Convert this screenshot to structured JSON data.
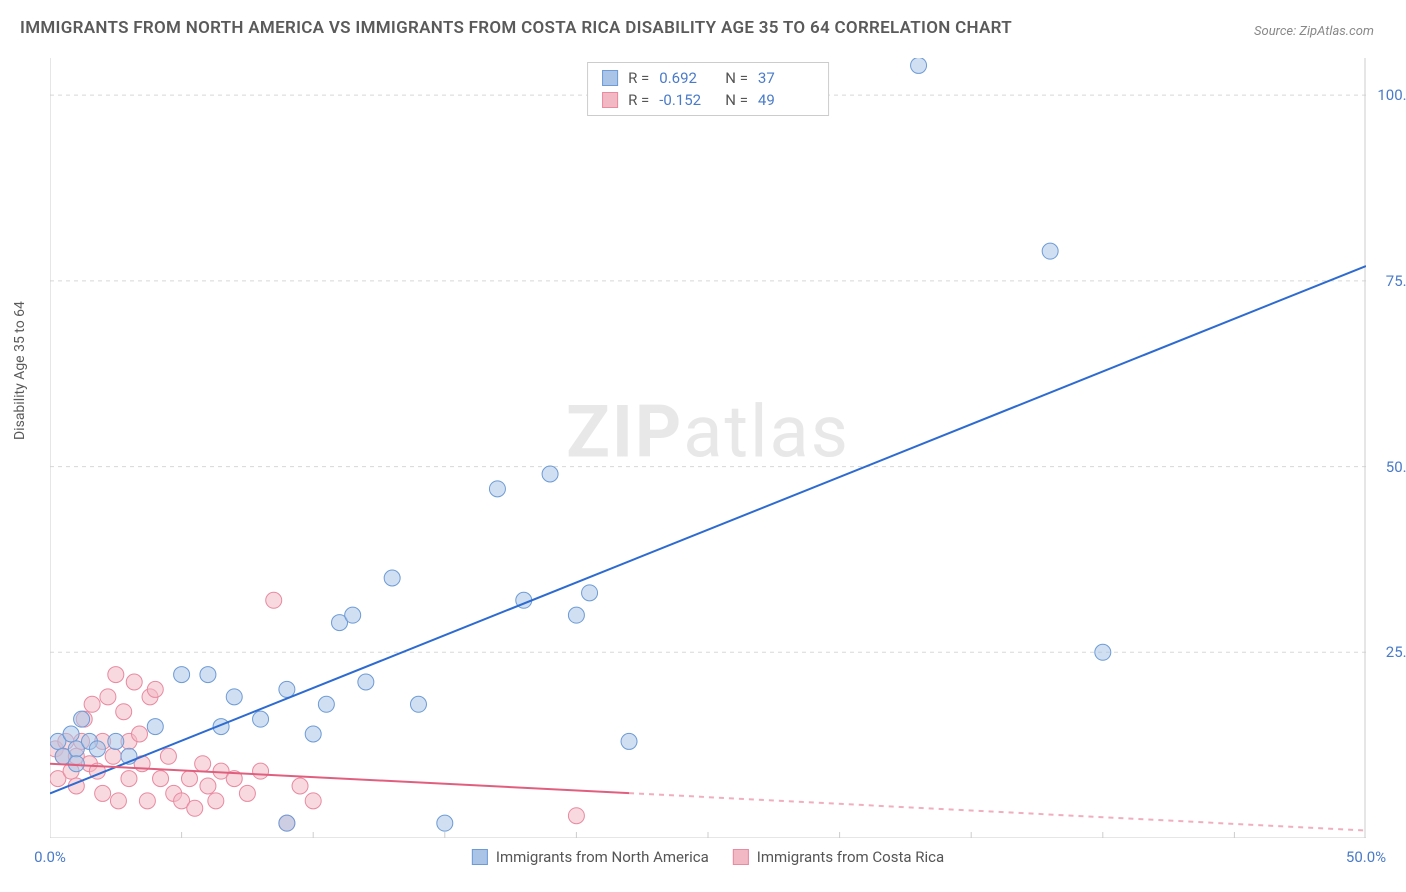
{
  "title": "IMMIGRANTS FROM NORTH AMERICA VS IMMIGRANTS FROM COSTA RICA DISABILITY AGE 35 TO 64 CORRELATION CHART",
  "source": "Source: ZipAtlas.com",
  "ylabel": "Disability Age 35 to 64",
  "watermark_zip": "ZIP",
  "watermark_atlas": "atlas",
  "chart": {
    "type": "scatter",
    "xlim": [
      0,
      50
    ],
    "ylim": [
      0,
      105
    ],
    "xticks": [
      0,
      50
    ],
    "xtick_labels": [
      "0.0%",
      "50.0%"
    ],
    "yticks": [
      25,
      50,
      75,
      100
    ],
    "ytick_labels": [
      "25.0%",
      "50.0%",
      "75.0%",
      "100.0%"
    ],
    "grid_color": "#d8d8d8",
    "axis_color": "#cccccc",
    "background_color": "#ffffff",
    "marker_radius": 8,
    "marker_opacity": 0.55,
    "line_width": 2
  },
  "series": [
    {
      "name": "Immigrants from North America",
      "color_fill": "#aac4e8",
      "color_stroke": "#6d9bd6",
      "line_color": "#2e6bd0",
      "r_label": "R =",
      "r_value": "0.692",
      "n_label": "N =",
      "n_value": "37",
      "regression": {
        "x1": 0,
        "y1": 6,
        "x2": 50,
        "y2": 77
      },
      "points": [
        [
          0.3,
          13
        ],
        [
          0.5,
          11
        ],
        [
          0.8,
          14
        ],
        [
          1,
          12
        ],
        [
          1,
          10
        ],
        [
          1.2,
          16
        ],
        [
          1.5,
          13
        ],
        [
          1.8,
          12
        ],
        [
          2.5,
          13
        ],
        [
          3,
          11
        ],
        [
          4,
          15
        ],
        [
          5,
          22
        ],
        [
          6,
          22
        ],
        [
          6.5,
          15
        ],
        [
          7,
          19
        ],
        [
          8,
          16
        ],
        [
          9,
          2
        ],
        [
          9,
          20
        ],
        [
          10,
          14
        ],
        [
          10.5,
          18
        ],
        [
          11,
          29
        ],
        [
          11.5,
          30
        ],
        [
          12,
          21
        ],
        [
          13,
          35
        ],
        [
          14,
          18
        ],
        [
          15,
          2
        ],
        [
          17,
          47
        ],
        [
          18,
          32
        ],
        [
          19,
          49
        ],
        [
          20,
          30
        ],
        [
          20.5,
          33
        ],
        [
          22,
          13
        ],
        [
          33,
          104
        ],
        [
          38,
          79
        ],
        [
          40,
          25
        ]
      ]
    },
    {
      "name": "Immigrants from Costa Rica",
      "color_fill": "#f2b9c4",
      "color_stroke": "#e88aa0",
      "line_color": "#e15f7e",
      "r_label": "R =",
      "r_value": "-0.152",
      "n_label": "N =",
      "n_value": "49",
      "regression": {
        "x1": 0,
        "y1": 10,
        "x2": 50,
        "y2": 1
      },
      "regression_solid_until_x": 22,
      "points": [
        [
          0.2,
          12
        ],
        [
          0.3,
          8
        ],
        [
          0.5,
          11
        ],
        [
          0.6,
          13
        ],
        [
          0.8,
          9
        ],
        [
          1,
          11
        ],
        [
          1,
          7
        ],
        [
          1.2,
          13
        ],
        [
          1.3,
          16
        ],
        [
          1.5,
          10
        ],
        [
          1.6,
          18
        ],
        [
          1.8,
          9
        ],
        [
          2,
          13
        ],
        [
          2,
          6
        ],
        [
          2.2,
          19
        ],
        [
          2.4,
          11
        ],
        [
          2.5,
          22
        ],
        [
          2.6,
          5
        ],
        [
          2.8,
          17
        ],
        [
          3,
          13
        ],
        [
          3,
          8
        ],
        [
          3.2,
          21
        ],
        [
          3.4,
          14
        ],
        [
          3.5,
          10
        ],
        [
          3.7,
          5
        ],
        [
          3.8,
          19
        ],
        [
          4,
          20
        ],
        [
          4.2,
          8
        ],
        [
          4.5,
          11
        ],
        [
          4.7,
          6
        ],
        [
          5,
          5
        ],
        [
          5.3,
          8
        ],
        [
          5.5,
          4
        ],
        [
          5.8,
          10
        ],
        [
          6,
          7
        ],
        [
          6.3,
          5
        ],
        [
          6.5,
          9
        ],
        [
          7,
          8
        ],
        [
          7.5,
          6
        ],
        [
          8,
          9
        ],
        [
          8.5,
          32
        ],
        [
          9,
          2
        ],
        [
          9.5,
          7
        ],
        [
          10,
          5
        ],
        [
          20,
          3
        ]
      ]
    }
  ],
  "legend": {
    "items": [
      {
        "label": "Immigrants from North America"
      },
      {
        "label": "Immigrants from Costa Rica"
      }
    ]
  }
}
